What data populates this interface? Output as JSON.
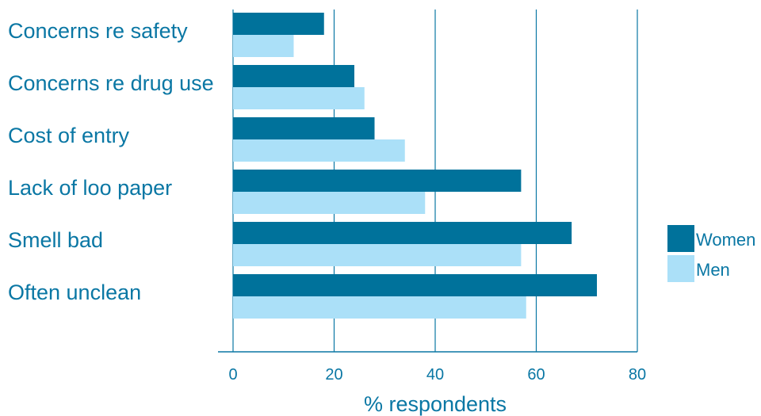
{
  "chart_data": {
    "type": "bar",
    "orientation": "horizontal",
    "categories": [
      "Concerns re safety",
      "Concerns re drug use",
      "Cost of entry",
      "Lack of loo paper",
      "Smell bad",
      "Often unclean"
    ],
    "series": [
      {
        "name": "Women",
        "color": "#00729b",
        "values": [
          18,
          24,
          28,
          57,
          67,
          72
        ]
      },
      {
        "name": "Men",
        "color": "#abe0f8",
        "values": [
          12,
          26,
          34,
          38,
          57,
          58
        ]
      }
    ],
    "xlabel": "% respondents",
    "xlim": [
      0,
      80
    ],
    "xticks": [
      0,
      20,
      40,
      60,
      80
    ],
    "grid": true,
    "legend_position": "right",
    "colors": {
      "text": "#0a77a4",
      "axis": "#0a77a4",
      "grid": "#0a77a4"
    }
  }
}
